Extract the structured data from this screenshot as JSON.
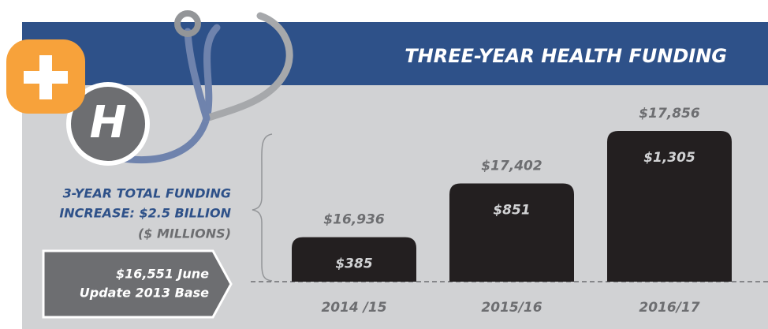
{
  "chart_data": {
    "type": "bar",
    "title": "THREE-YEAR HEALTH FUNDING",
    "categories": [
      "2014 /15",
      "2015/16",
      "2016/17"
    ],
    "values": [
      385,
      851,
      1305
    ],
    "value_labels": [
      "$385",
      "$851",
      "$1,305"
    ],
    "total_labels": [
      "$16,936",
      "$17,402",
      "$17,856"
    ],
    "color": "#231f20",
    "annotation": [
      "3-YEAR TOTAL FUNDING",
      "INCREASE: $2.5 BILLION"
    ],
    "unit_label": "($ MILLIONS)",
    "base_label": [
      "$16,551 June",
      "Update 2013 Base"
    ],
    "icon_label": "H"
  }
}
